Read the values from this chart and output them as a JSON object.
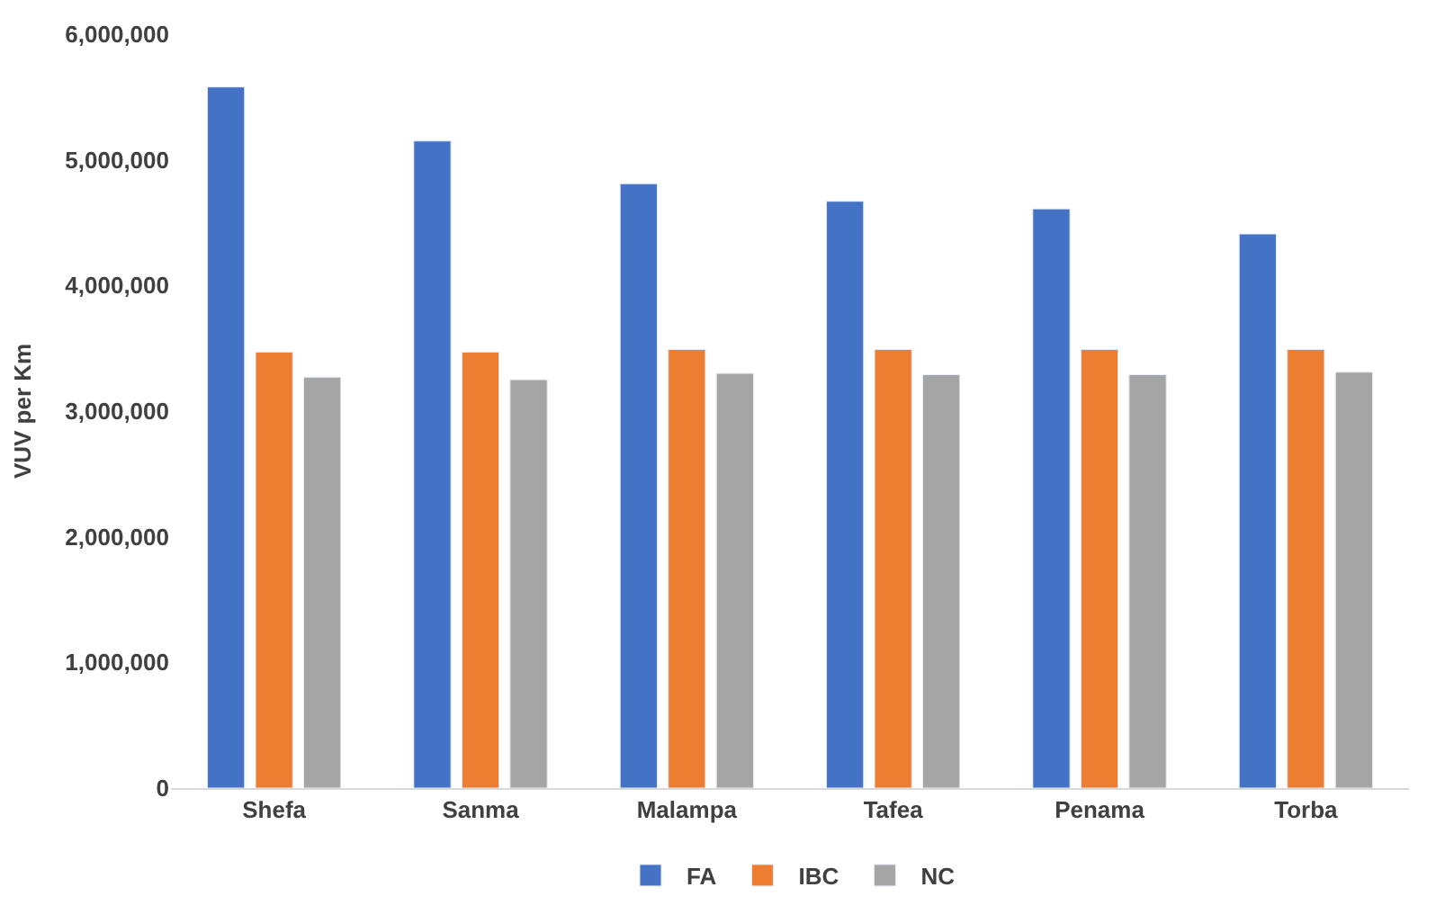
{
  "chart_data": {
    "type": "bar",
    "ylabel": "VUV per Km",
    "categories": [
      "Shefa",
      "Sanma",
      "Malampa",
      "Tafea",
      "Penama",
      "Torba"
    ],
    "series": [
      {
        "name": "FA",
        "color": "#4472c4",
        "values": [
          5580000,
          5150000,
          4810000,
          4670000,
          4610000,
          4410000
        ]
      },
      {
        "name": "IBC",
        "color": "#ed7d31",
        "values": [
          3470000,
          3470000,
          3490000,
          3490000,
          3490000,
          3490000
        ]
      },
      {
        "name": "NC",
        "color": "#a5a5a5",
        "values": [
          3270000,
          3250000,
          3300000,
          3290000,
          3290000,
          3310000
        ]
      }
    ],
    "ylim": [
      0,
      6000000
    ],
    "yticks": [
      {
        "value": 0,
        "label": "0"
      },
      {
        "value": 1000000,
        "label": "1,000,000"
      },
      {
        "value": 2000000,
        "label": "2,000,000"
      },
      {
        "value": 3000000,
        "label": "3,000,000"
      },
      {
        "value": 4000000,
        "label": "4,000,000"
      },
      {
        "value": 5000000,
        "label": "5,000,000"
      },
      {
        "value": 6000000,
        "label": "6,000,000"
      }
    ],
    "legend": "bottom"
  }
}
